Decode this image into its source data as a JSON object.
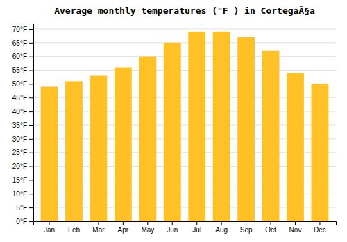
{
  "chart_data": {
    "type": "bar",
    "title": "Average monthly temperatures (°F ) in CortegaÃ§a",
    "categories": [
      "Jan",
      "Feb",
      "Mar",
      "Apr",
      "May",
      "Jun",
      "Jul",
      "Aug",
      "Sep",
      "Oct",
      "Nov",
      "Dec"
    ],
    "values": [
      49,
      51,
      53,
      56,
      60,
      65,
      69,
      69,
      67,
      62,
      54,
      50
    ],
    "color": "#FFC125",
    "ylim": [
      0,
      72
    ],
    "yticks": [
      {
        "value": 0,
        "label": "0°F"
      },
      {
        "value": 5,
        "label": "5°F"
      },
      {
        "value": 10,
        "label": "10°F"
      },
      {
        "value": 15,
        "label": "15°F"
      },
      {
        "value": 20,
        "label": "20°F"
      },
      {
        "value": 25,
        "label": "25°F"
      },
      {
        "value": 30,
        "label": "30°F"
      },
      {
        "value": 35,
        "label": "35°F"
      },
      {
        "value": 40,
        "label": "40°F"
      },
      {
        "value": 45,
        "label": "45°F"
      },
      {
        "value": 50,
        "label": "50°F"
      },
      {
        "value": 55,
        "label": "55°F"
      },
      {
        "value": 60,
        "label": "60°F"
      },
      {
        "value": 65,
        "label": "65°F"
      },
      {
        "value": 70,
        "label": "70°F"
      }
    ],
    "grid": true
  }
}
